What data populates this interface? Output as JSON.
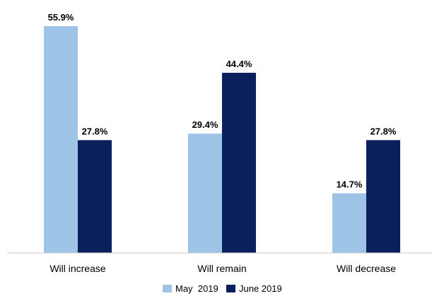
{
  "chart_data": {
    "type": "bar",
    "categories": [
      "Will increase",
      "Will remain",
      "Will decrease"
    ],
    "series": [
      {
        "name": "May  2019",
        "values": [
          55.9,
          29.4,
          14.7
        ],
        "labels": [
          "55.9%",
          "29.4%",
          "14.7%"
        ],
        "color": "#9dc3e6"
      },
      {
        "name": "June 2019",
        "values": [
          27.8,
          44.4,
          27.8
        ],
        "labels": [
          "27.8%",
          "44.4%",
          "27.8%"
        ],
        "color": "#0a1f5c"
      }
    ],
    "ylim": [
      0,
      60
    ],
    "grid": false,
    "legend": "bottom",
    "xlabel": "",
    "ylabel": "",
    "title": ""
  }
}
